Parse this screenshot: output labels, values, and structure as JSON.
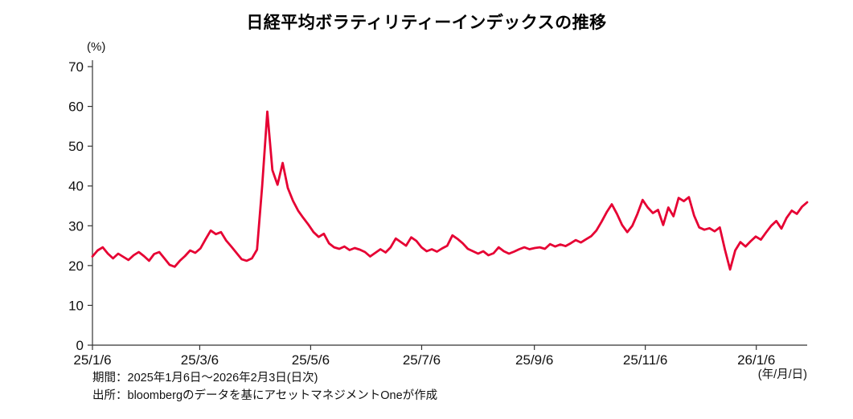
{
  "chart_data": {
    "type": "line",
    "title": "日経平均ボラティリティーインデックスの推移",
    "ylabel": "(%)",
    "xlabel": "(年/月/日)",
    "ylim": [
      0,
      70
    ],
    "y_ticks": [
      0,
      10,
      20,
      30,
      40,
      50,
      60,
      70
    ],
    "x_ticks": [
      {
        "label": "25/1/6",
        "f": 0.0
      },
      {
        "label": "25/3/6",
        "f": 0.1501
      },
      {
        "label": "25/5/6",
        "f": 0.3053
      },
      {
        "label": "25/7/6",
        "f": 0.4606
      },
      {
        "label": "25/9/6",
        "f": 0.6183
      },
      {
        "label": "25/11/6",
        "f": 0.7735
      },
      {
        "label": "26/1/6",
        "f": 0.9288
      }
    ],
    "x_start_label": "25/1/6",
    "x_end_label": "26/2/3",
    "grid": false,
    "legend": "none",
    "series": [
      {
        "name": "日経平均ボラティリティーインデックス",
        "color": "#e60033",
        "values": [
          22.3,
          23.8,
          24.6,
          23.0,
          21.8,
          23.0,
          22.2,
          21.4,
          22.6,
          23.4,
          22.4,
          21.2,
          22.9,
          23.4,
          21.8,
          20.2,
          19.7,
          21.2,
          22.4,
          23.8,
          23.2,
          24.3,
          26.6,
          28.8,
          27.9,
          28.4,
          26.3,
          24.8,
          23.2,
          21.6,
          21.2,
          21.8,
          24.0,
          40.0,
          58.7,
          44.0,
          40.3,
          45.8,
          39.5,
          36.3,
          33.8,
          32.0,
          30.3,
          28.4,
          27.2,
          28.0,
          25.6,
          24.6,
          24.2,
          24.8,
          23.9,
          24.4,
          24.0,
          23.4,
          22.3,
          23.2,
          24.1,
          23.3,
          24.6,
          26.8,
          25.9,
          25.0,
          27.1,
          26.2,
          24.6,
          23.6,
          24.1,
          23.5,
          24.3,
          25.0,
          27.6,
          26.7,
          25.6,
          24.2,
          23.6,
          23.0,
          23.6,
          22.6,
          23.1,
          24.6,
          23.6,
          23.0,
          23.5,
          24.1,
          24.6,
          24.1,
          24.4,
          24.6,
          24.2,
          25.4,
          24.8,
          25.3,
          24.9,
          25.6,
          26.4,
          25.8,
          26.6,
          27.4,
          28.8,
          31.0,
          33.4,
          35.4,
          33.0,
          30.2,
          28.4,
          30.0,
          33.0,
          36.5,
          34.6,
          33.2,
          34.0,
          30.2,
          34.6,
          32.4,
          37.0,
          36.2,
          37.2,
          32.6,
          29.6,
          29.0,
          29.4,
          28.6,
          29.6,
          24.0,
          19.0,
          23.8,
          25.9,
          24.8,
          26.1,
          27.3,
          26.5,
          28.3,
          30.0,
          31.2,
          29.3,
          32.0,
          33.8,
          33.0,
          34.8,
          35.9
        ]
      }
    ]
  },
  "notes": {
    "period": "期間：2025年1月6日～2026年2月3日(日次)",
    "source": "出所：bloombergのデータを基にアセットマネジメントOneが作成"
  },
  "colors": {
    "line": "#e60033",
    "axis": "#333333",
    "text": "#111111",
    "background": "#ffffff"
  }
}
